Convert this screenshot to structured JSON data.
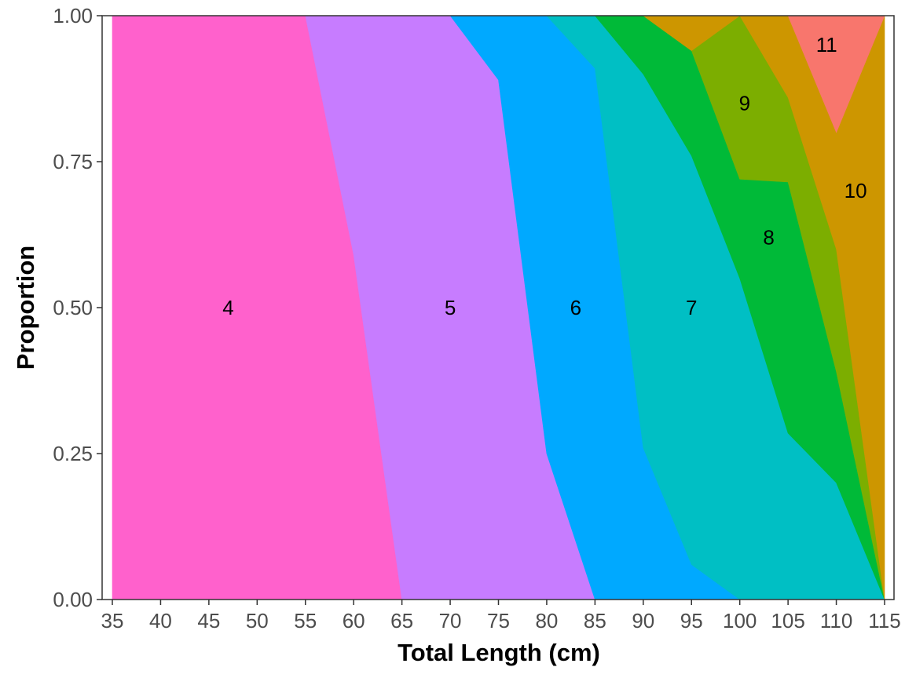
{
  "chart_data": {
    "type": "area",
    "stacked": "proportion",
    "xlabel": "Total Length (cm)",
    "ylabel": "Proportion",
    "xlim": [
      35,
      115
    ],
    "ylim": [
      0,
      1
    ],
    "x_ticks": [
      "35",
      "40",
      "45",
      "50",
      "55",
      "60",
      "65",
      "70",
      "75",
      "80",
      "85",
      "90",
      "95",
      "100",
      "105",
      "110",
      "115"
    ],
    "y_ticks": [
      "0.00",
      "0.25",
      "0.50",
      "0.75",
      "1.00"
    ],
    "grid": false,
    "legend": "none",
    "x": [
      35,
      40,
      45,
      50,
      55,
      60,
      65,
      70,
      75,
      80,
      85,
      90,
      95,
      100,
      105,
      110,
      115
    ],
    "series": [
      {
        "name": "4",
        "color": "#FF61CC",
        "label_x": 47,
        "label_y": 0.5,
        "values": [
          1,
          1,
          1,
          1,
          1,
          0.59,
          0,
          0,
          0,
          0,
          0,
          0,
          0,
          0,
          0,
          0,
          0
        ]
      },
      {
        "name": "5",
        "color": "#C77CFF",
        "label_x": 70,
        "label_y": 0.5,
        "values": [
          0,
          0,
          0,
          0,
          0,
          0.41,
          1,
          1,
          0.89,
          0.25,
          0,
          0,
          0,
          0,
          0,
          0,
          0
        ]
      },
      {
        "name": "6",
        "color": "#00A9FF",
        "label_x": 83,
        "label_y": 0.5,
        "values": [
          0,
          0,
          0,
          0,
          0,
          0,
          0,
          0,
          0.11,
          0.75,
          0.91,
          0.26,
          0.06,
          0,
          0,
          0,
          0
        ]
      },
      {
        "name": "7",
        "color": "#00BFC4",
        "label_x": 95,
        "label_y": 0.5,
        "values": [
          0,
          0,
          0,
          0,
          0,
          0,
          0,
          0,
          0,
          0,
          0.09,
          0.64,
          0.7,
          0.55,
          0.285,
          0.2,
          0
        ]
      },
      {
        "name": "8",
        "color": "#00BA38",
        "label_x": 103,
        "label_y": 0.62,
        "values": [
          0,
          0,
          0,
          0,
          0,
          0,
          0,
          0,
          0,
          0,
          0,
          0.1,
          0.18,
          0.17,
          0.43,
          0.19,
          0
        ]
      },
      {
        "name": "9",
        "color": "#7CAE00",
        "label_x": 100.5,
        "label_y": 0.85,
        "values": [
          0,
          0,
          0,
          0,
          0,
          0,
          0,
          0,
          0,
          0,
          0,
          0,
          0,
          0.28,
          0.145,
          0.21,
          0
        ]
      },
      {
        "name": "10",
        "color": "#CD9600",
        "label_x": 112,
        "label_y": 0.7,
        "values": [
          0,
          0,
          0,
          0,
          0,
          0,
          0,
          0,
          0,
          0,
          0,
          0,
          0.06,
          0,
          0.14,
          0.2,
          1
        ]
      },
      {
        "name": "11",
        "color": "#F8766D",
        "label_x": 109,
        "label_y": 0.95,
        "values": [
          0,
          0,
          0,
          0,
          0,
          0,
          0,
          0,
          0,
          0,
          0,
          0,
          0,
          0,
          0,
          0.2,
          0
        ]
      }
    ]
  }
}
